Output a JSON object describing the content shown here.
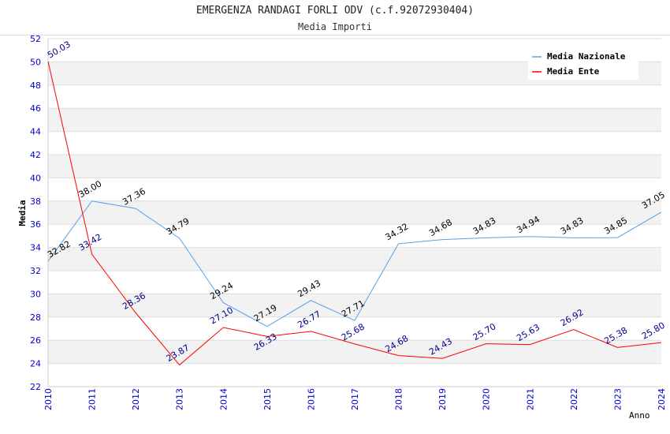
{
  "chart_data": {
    "type": "line",
    "title": "EMERGENZA RANDAGI FORLI ODV (c.f.92072930404)",
    "subtitle": "Media Importi",
    "xlabel": "Anno",
    "ylabel": "Media",
    "ylim": [
      22,
      52
    ],
    "yticks": [
      22,
      24,
      26,
      28,
      30,
      32,
      34,
      36,
      38,
      40,
      42,
      44,
      46,
      48,
      50,
      52
    ],
    "x": [
      2010,
      2011,
      2012,
      2013,
      2014,
      2015,
      2016,
      2017,
      2018,
      2019,
      2020,
      2021,
      2022,
      2023,
      2024
    ],
    "grid": true,
    "legend_position": "top-right",
    "series": [
      {
        "name": "Media Nazionale",
        "color": "#5aa0e6",
        "label_color": "#000000",
        "values": [
          32.82,
          38.0,
          37.36,
          34.79,
          29.24,
          27.19,
          29.43,
          27.71,
          34.32,
          34.68,
          34.83,
          34.94,
          34.83,
          34.85,
          37.05
        ]
      },
      {
        "name": "Media Ente",
        "color": "#ff0000",
        "label_color": "#00008b",
        "values": [
          50.03,
          33.42,
          28.36,
          23.87,
          27.1,
          26.33,
          26.77,
          25.68,
          24.68,
          24.43,
          25.7,
          25.63,
          26.92,
          25.38,
          25.8
        ]
      }
    ]
  }
}
